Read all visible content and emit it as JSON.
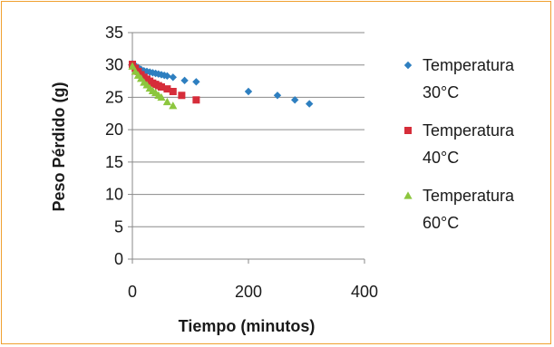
{
  "chart_data": {
    "type": "scatter",
    "title": "",
    "xlabel": "Tiempo (minutos)",
    "ylabel": "Peso Pérdido (g)",
    "xlim": [
      0,
      400
    ],
    "ylim": [
      0,
      35
    ],
    "xticks": [
      0,
      200,
      400
    ],
    "yticks": [
      0,
      5,
      10,
      15,
      20,
      25,
      30,
      35
    ],
    "grid": "horizontal",
    "legend_position": "right",
    "series": [
      {
        "name_lines": [
          "Temperatura",
          "30°C"
        ],
        "marker": "diamond",
        "color": "#2e7fc0",
        "points": [
          [
            0,
            30.2
          ],
          [
            5,
            29.9
          ],
          [
            10,
            29.6
          ],
          [
            15,
            29.3
          ],
          [
            20,
            29.1
          ],
          [
            25,
            29.0
          ],
          [
            30,
            28.9
          ],
          [
            35,
            28.8
          ],
          [
            40,
            28.7
          ],
          [
            45,
            28.6
          ],
          [
            50,
            28.5
          ],
          [
            55,
            28.4
          ],
          [
            60,
            28.3
          ],
          [
            70,
            28.1
          ],
          [
            90,
            27.6
          ],
          [
            110,
            27.4
          ],
          [
            200,
            25.9
          ],
          [
            250,
            25.3
          ],
          [
            280,
            24.6
          ],
          [
            305,
            24.0
          ]
        ]
      },
      {
        "name_lines": [
          "Temperatura",
          "40°C"
        ],
        "marker": "square",
        "color": "#d62d3a",
        "points": [
          [
            0,
            30.1
          ],
          [
            5,
            29.5
          ],
          [
            10,
            29.0
          ],
          [
            15,
            28.5
          ],
          [
            20,
            28.1
          ],
          [
            25,
            27.8
          ],
          [
            30,
            27.5
          ],
          [
            35,
            27.2
          ],
          [
            40,
            27.0
          ],
          [
            45,
            26.8
          ],
          [
            50,
            26.6
          ],
          [
            60,
            26.3
          ],
          [
            70,
            25.9
          ],
          [
            85,
            25.3
          ],
          [
            110,
            24.6
          ]
        ]
      },
      {
        "name_lines": [
          "Temperatura",
          "60°C"
        ],
        "marker": "triangle",
        "color": "#8cc63e",
        "points": [
          [
            0,
            29.8
          ],
          [
            5,
            29.0
          ],
          [
            10,
            28.4
          ],
          [
            15,
            27.9
          ],
          [
            20,
            27.3
          ],
          [
            25,
            26.9
          ],
          [
            30,
            26.4
          ],
          [
            35,
            26.0
          ],
          [
            40,
            25.7
          ],
          [
            45,
            25.3
          ],
          [
            50,
            25.0
          ],
          [
            60,
            24.3
          ],
          [
            70,
            23.7
          ]
        ]
      }
    ]
  }
}
